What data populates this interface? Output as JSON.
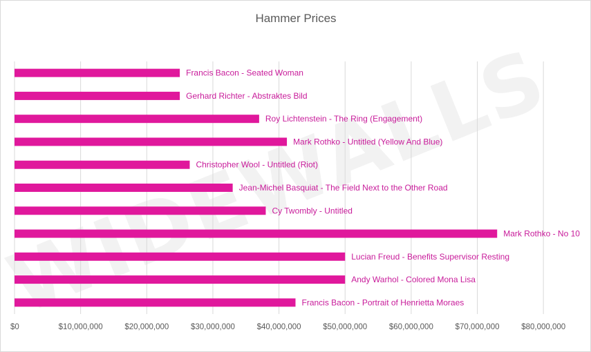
{
  "watermark": "WIDEWALLS",
  "chart_data": {
    "type": "bar",
    "orientation": "horizontal",
    "title": "Hammer Prices",
    "xlabel": "",
    "ylabel": "",
    "xlim": [
      0,
      85000000
    ],
    "x_ticks": [
      0,
      10000000,
      20000000,
      30000000,
      40000000,
      50000000,
      60000000,
      70000000,
      80000000
    ],
    "x_tick_labels": [
      "$0",
      "$10,000,000",
      "$20,000,000",
      "$30,000,000",
      "$40,000,000",
      "$50,000,000",
      "$60,000,000",
      "$70,000,000",
      "$80,000,000"
    ],
    "grid": true,
    "legend": "none",
    "bar_color": "#e0189c",
    "label_color": "#c81b9a",
    "categories": [
      "Francis Bacon - Seated Woman",
      "Gerhard Richter - Abstraktes Bild",
      "Roy Lichtenstein - The Ring (Engagement)",
      "Mark Rothko - Untitled (Yellow And Blue)",
      "Christopher Wool - Untitled (Riot)",
      "Jean-Michel Basquiat - The Field Next to the Other Road",
      "Cy Twombly - Untitled",
      "Mark Rothko - No 10",
      "Lucian Freud - Benefits Supervisor Resting",
      "Andy Warhol - Colored Mona Lisa",
      "Francis Bacon - Portrait of Henrietta Moraes"
    ],
    "values": [
      25000000,
      25000000,
      37000000,
      41200000,
      26500000,
      33000000,
      38000000,
      73000000,
      50000000,
      50000000,
      42500000
    ]
  }
}
